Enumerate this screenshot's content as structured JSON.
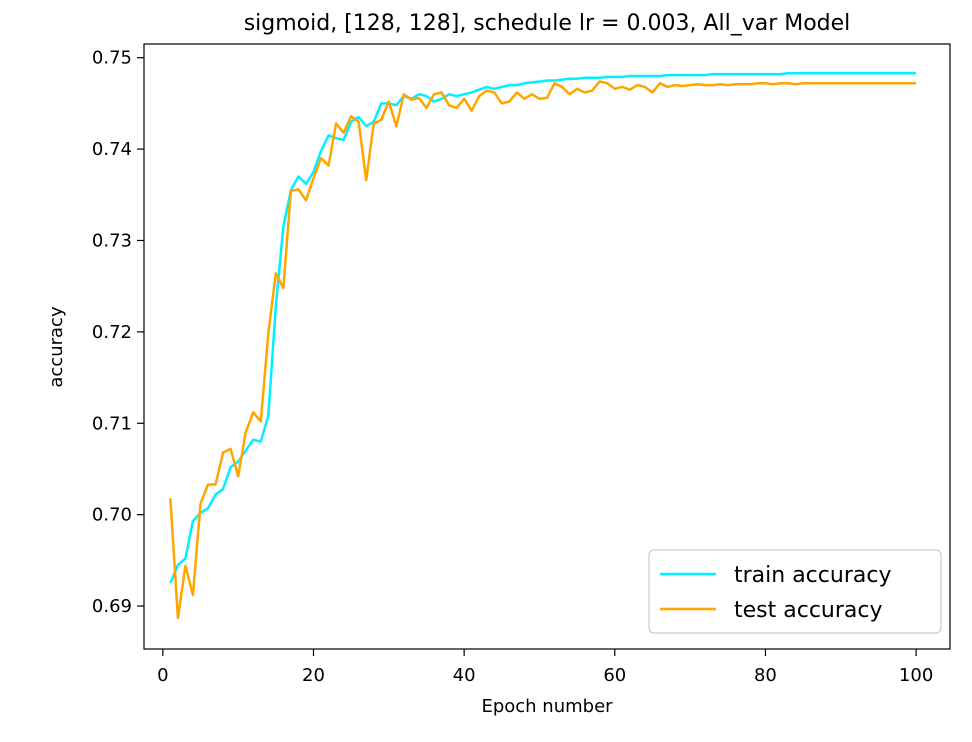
{
  "chart_data": {
    "type": "line",
    "title": "sigmoid, [128, 128], schedule lr = 0.003, All_var Model",
    "xlabel": "Epoch number",
    "ylabel": "accuracy",
    "xlim": [
      -2.5,
      104.5
    ],
    "ylim": [
      0.6853,
      0.7515
    ],
    "xticks": [
      0,
      20,
      40,
      60,
      80,
      100
    ],
    "xtick_labels": [
      "0",
      "20",
      "40",
      "60",
      "80",
      "100"
    ],
    "yticks": [
      0.69,
      0.7,
      0.71,
      0.72,
      0.73,
      0.74,
      0.75
    ],
    "ytick_labels": [
      "0.69",
      "0.70",
      "0.71",
      "0.72",
      "0.73",
      "0.74",
      "0.75"
    ],
    "grid": false,
    "legend": "lower-right",
    "x": [
      1,
      2,
      3,
      4,
      5,
      6,
      7,
      8,
      9,
      10,
      11,
      12,
      13,
      14,
      15,
      16,
      17,
      18,
      19,
      20,
      21,
      22,
      23,
      24,
      25,
      26,
      27,
      28,
      29,
      30,
      31,
      32,
      33,
      34,
      35,
      36,
      37,
      38,
      39,
      40,
      41,
      42,
      43,
      44,
      45,
      46,
      47,
      48,
      49,
      50,
      51,
      52,
      53,
      54,
      55,
      56,
      57,
      58,
      59,
      60,
      61,
      62,
      63,
      64,
      65,
      66,
      67,
      68,
      69,
      70,
      71,
      72,
      73,
      74,
      75,
      76,
      77,
      78,
      79,
      80,
      81,
      82,
      83,
      84,
      85,
      86,
      87,
      88,
      89,
      90,
      91,
      92,
      93,
      94,
      95,
      96,
      97,
      98,
      99,
      100
    ],
    "series": [
      {
        "name": "train accuracy",
        "color": "#00f0ff",
        "values": [
          0.6925,
          0.6945,
          0.6952,
          0.6993,
          0.7002,
          0.7007,
          0.7022,
          0.7028,
          0.7052,
          0.7058,
          0.707,
          0.7082,
          0.708,
          0.7108,
          0.7228,
          0.7315,
          0.7355,
          0.737,
          0.7362,
          0.7375,
          0.7398,
          0.7415,
          0.7412,
          0.741,
          0.743,
          0.7435,
          0.7425,
          0.743,
          0.745,
          0.745,
          0.7448,
          0.7458,
          0.7455,
          0.746,
          0.7458,
          0.7452,
          0.7455,
          0.746,
          0.7458,
          0.746,
          0.7462,
          0.7465,
          0.7468,
          0.7466,
          0.7468,
          0.747,
          0.747,
          0.7472,
          0.7473,
          0.7474,
          0.7475,
          0.7475,
          0.7476,
          0.7477,
          0.7477,
          0.7478,
          0.7478,
          0.7478,
          0.7479,
          0.7479,
          0.7479,
          0.748,
          0.748,
          0.748,
          0.748,
          0.748,
          0.7481,
          0.7481,
          0.7481,
          0.7481,
          0.7481,
          0.7481,
          0.7482,
          0.7482,
          0.7482,
          0.7482,
          0.7482,
          0.7482,
          0.7482,
          0.7482,
          0.7482,
          0.7482,
          0.7483,
          0.7483,
          0.7483,
          0.7483,
          0.7483,
          0.7483,
          0.7483,
          0.7483,
          0.7483,
          0.7483,
          0.7483,
          0.7483,
          0.7483,
          0.7483,
          0.7483,
          0.7483,
          0.7483,
          0.7483
        ]
      },
      {
        "name": "test accuracy",
        "color": "#ffa500",
        "values": [
          0.7018,
          0.6887,
          0.6944,
          0.6912,
          0.7012,
          0.7033,
          0.7033,
          0.7068,
          0.7072,
          0.7042,
          0.709,
          0.7112,
          0.7102,
          0.7198,
          0.7264,
          0.7248,
          0.7354,
          0.7356,
          0.7344,
          0.7368,
          0.739,
          0.7382,
          0.7428,
          0.7418,
          0.7436,
          0.743,
          0.7366,
          0.7428,
          0.7432,
          0.7452,
          0.7425,
          0.746,
          0.7454,
          0.7456,
          0.7445,
          0.746,
          0.7462,
          0.7448,
          0.7445,
          0.7455,
          0.7442,
          0.7458,
          0.7464,
          0.7462,
          0.745,
          0.7452,
          0.7462,
          0.7455,
          0.746,
          0.7455,
          0.7456,
          0.7472,
          0.7468,
          0.746,
          0.7466,
          0.7462,
          0.7464,
          0.7474,
          0.7472,
          0.7466,
          0.7468,
          0.7465,
          0.747,
          0.7468,
          0.7462,
          0.7472,
          0.7468,
          0.747,
          0.7469,
          0.747,
          0.7471,
          0.747,
          0.747,
          0.7471,
          0.747,
          0.7471,
          0.7471,
          0.7471,
          0.7472,
          0.7472,
          0.7471,
          0.7472,
          0.7472,
          0.7471,
          0.7472,
          0.7472,
          0.7472,
          0.7472,
          0.7472,
          0.7472,
          0.7472,
          0.7472,
          0.7472,
          0.7472,
          0.7472,
          0.7472,
          0.7472,
          0.7472,
          0.7472,
          0.7472
        ]
      }
    ]
  }
}
